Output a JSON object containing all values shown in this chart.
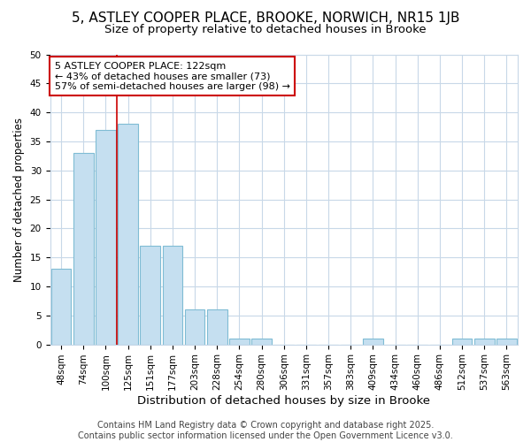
{
  "title1": "5, ASTLEY COOPER PLACE, BROOKE, NORWICH, NR15 1JB",
  "title2": "Size of property relative to detached houses in Brooke",
  "xlabel": "Distribution of detached houses by size in Brooke",
  "ylabel": "Number of detached properties",
  "categories": [
    "48sqm",
    "74sqm",
    "100sqm",
    "125sqm",
    "151sqm",
    "177sqm",
    "203sqm",
    "228sqm",
    "254sqm",
    "280sqm",
    "306sqm",
    "331sqm",
    "357sqm",
    "383sqm",
    "409sqm",
    "434sqm",
    "460sqm",
    "486sqm",
    "512sqm",
    "537sqm",
    "563sqm"
  ],
  "values": [
    13,
    33,
    37,
    38,
    17,
    17,
    6,
    6,
    1,
    1,
    0,
    0,
    0,
    0,
    1,
    0,
    0,
    0,
    1,
    1,
    1
  ],
  "bar_color": "#c5dff0",
  "bar_edge_color": "#7fbcd4",
  "vline_x": 2.5,
  "vline_color": "#cc0000",
  "annotation_title": "5 ASTLEY COOPER PLACE: 122sqm",
  "annotation_line1": "← 43% of detached houses are smaller (73)",
  "annotation_line2": "57% of semi-detached houses are larger (98) →",
  "annotation_box_facecolor": "#ffffff",
  "annotation_box_edgecolor": "#cc0000",
  "ylim": [
    0,
    50
  ],
  "yticks": [
    0,
    5,
    10,
    15,
    20,
    25,
    30,
    35,
    40,
    45,
    50
  ],
  "footer1": "Contains HM Land Registry data © Crown copyright and database right 2025.",
  "footer2": "Contains public sector information licensed under the Open Government Licence v3.0.",
  "background_color": "#ffffff",
  "grid_color": "#c8d8e8",
  "title1_fontsize": 11,
  "title2_fontsize": 9.5,
  "xlabel_fontsize": 9.5,
  "ylabel_fontsize": 8.5,
  "tick_fontsize": 7.5,
  "annotation_fontsize": 8,
  "footer_fontsize": 7
}
